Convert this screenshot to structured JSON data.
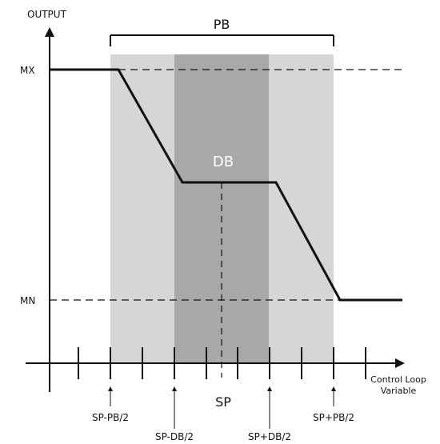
{
  "diagram": {
    "axis_title_y": "OUTPUT",
    "axis_title_x_line1": "Control Loop",
    "axis_title_x_line2": "Variable",
    "level_labels": {
      "max": "MX",
      "min": "MN"
    },
    "band_labels": {
      "proportional": "PB",
      "dead": "DB"
    },
    "marker_labels": {
      "sp": "SP",
      "sp_minus_pb_half": "SP-PB/2",
      "sp_minus_db_half": "SP-DB/2",
      "sp_plus_db_half": "SP+DB/2",
      "sp_plus_pb_half": "SP+PB/2"
    },
    "colors": {
      "pb_band": "#d6d6d6",
      "db_band": "#a8a8a8",
      "curve": "#111111",
      "axis": "#111111",
      "db_label": "#ffffff"
    }
  }
}
